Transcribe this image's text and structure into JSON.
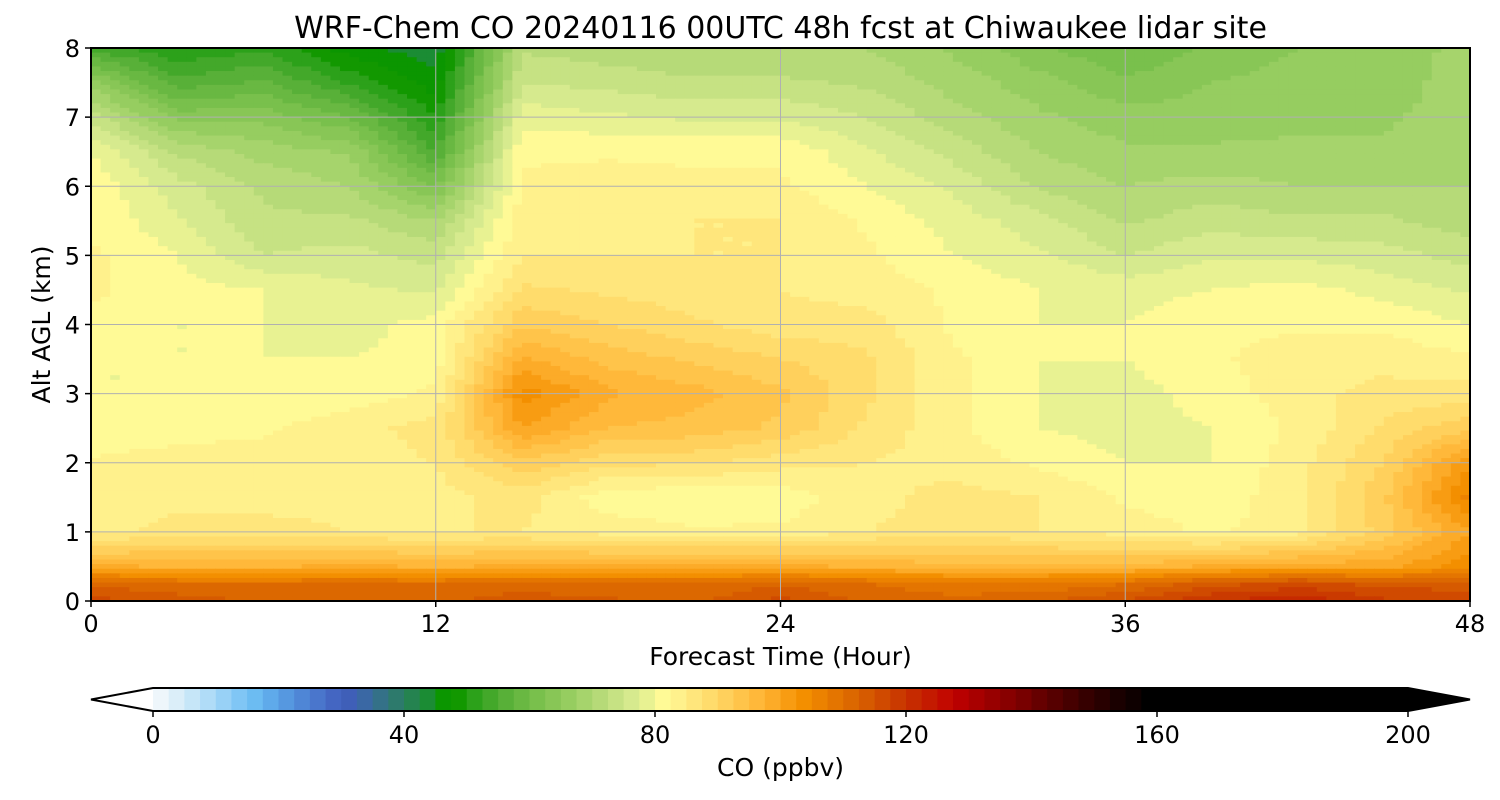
{
  "chart_data": {
    "type": "heatmap",
    "title": "WRF-Chem CO  20240116 00UTC 48h fcst at Chiwaukee lidar site",
    "xlabel": "Forecast Time (Hour)",
    "ylabel": "Alt AGL (km)",
    "xlim": [
      0,
      48
    ],
    "ylim": [
      0,
      8
    ],
    "x_ticks": [
      0,
      12,
      24,
      36,
      48
    ],
    "y_ticks": [
      0,
      1,
      2,
      3,
      4,
      5,
      6,
      7,
      8
    ],
    "grid": true,
    "x": [
      0,
      3,
      6,
      9,
      12,
      15,
      18,
      21,
      24,
      27,
      30,
      33,
      36,
      39,
      42,
      45,
      48
    ],
    "y": [
      0,
      0.25,
      0.5,
      1,
      1.5,
      2,
      2.5,
      3,
      3.5,
      4,
      4.5,
      5,
      5.5,
      6,
      6.5,
      7,
      7.5,
      8
    ],
    "z": [
      [
        116,
        114,
        112,
        112,
        112,
        114,
        113,
        112,
        116,
        112,
        111,
        112,
        115,
        120,
        122,
        118,
        116
      ],
      [
        112,
        110,
        110,
        110,
        110,
        111,
        110,
        110,
        112,
        110,
        108,
        108,
        110,
        114,
        116,
        114,
        114
      ],
      [
        98,
        97,
        97,
        98,
        97,
        98,
        98,
        98,
        98,
        97,
        96,
        96,
        96,
        98,
        99,
        99,
        104
      ],
      [
        84,
        86,
        86,
        85,
        85,
        85,
        84,
        83,
        83,
        85,
        86,
        85,
        84,
        82,
        84,
        91,
        100
      ],
      [
        84,
        84,
        84,
        84,
        84,
        86,
        81,
        80,
        81,
        84,
        86,
        85,
        82,
        81,
        84,
        92,
        106
      ],
      [
        83,
        84,
        84,
        84,
        85,
        92,
        88,
        88,
        86,
        85,
        84,
        82,
        80,
        80,
        84,
        90,
        102
      ],
      [
        80,
        81,
        82,
        84,
        86,
        100,
        95,
        94,
        92,
        87,
        83,
        80,
        79,
        80,
        83,
        88,
        92
      ],
      [
        80,
        80,
        81,
        81,
        83,
        104,
        98,
        96,
        93,
        88,
        83,
        80,
        79,
        81,
        84,
        86,
        86
      ],
      [
        80,
        80,
        80,
        80,
        81,
        98,
        94,
        92,
        90,
        88,
        83,
        80,
        80,
        82,
        84,
        84,
        83
      ],
      [
        82,
        80,
        80,
        79,
        81,
        92,
        90,
        88,
        86,
        86,
        82,
        80,
        80,
        82,
        82,
        82,
        80
      ],
      [
        83,
        81,
        80,
        78,
        77,
        88,
        87,
        86,
        85,
        84,
        82,
        80,
        79,
        80,
        81,
        79,
        77
      ],
      [
        83,
        80,
        75,
        76,
        74,
        85,
        85,
        85,
        85,
        83,
        80,
        78,
        75,
        77,
        77,
        76,
        74
      ],
      [
        82,
        78,
        73,
        73,
        70,
        84,
        84,
        85,
        85,
        82,
        79,
        76,
        72,
        74,
        73,
        73,
        71
      ],
      [
        82,
        76,
        72,
        70,
        62,
        83,
        84,
        83,
        83,
        80,
        77,
        72,
        70,
        71,
        70,
        70,
        70
      ],
      [
        80,
        72,
        69,
        67,
        55,
        82,
        82,
        82,
        82,
        78,
        74,
        70,
        68,
        68,
        68,
        68,
        69
      ],
      [
        74,
        64,
        64,
        60,
        50,
        79,
        78,
        77,
        77,
        75,
        71,
        68,
        66,
        66,
        67,
        67,
        69
      ],
      [
        66,
        56,
        58,
        52,
        46,
        75,
        74,
        73,
        73,
        72,
        69,
        66,
        63,
        65,
        66,
        66,
        69
      ],
      [
        54,
        50,
        52,
        46,
        43,
        72,
        71,
        70,
        70,
        70,
        67,
        63,
        60,
        63,
        65,
        65,
        69
      ]
    ],
    "colorbar": {
      "label": "CO  (ppbv)",
      "min": 0,
      "max": 200,
      "step": 2.5,
      "ticks": [
        0,
        40,
        80,
        120,
        160,
        200
      ],
      "extend": "both",
      "colors": [
        "#ffffff",
        "#eef6fb",
        "#dbeef9",
        "#c6e6f8",
        "#b0dcf7",
        "#98d1f6",
        "#80c6f5",
        "#6cbcf2",
        "#5faaea",
        "#5698e0",
        "#4f86d6",
        "#4a76cc",
        "#4466c2",
        "#3f5fb8",
        "#3a68a4",
        "#347188",
        "#2d7a6c",
        "#258350",
        "#1b8c34",
        "#0b9600",
        "#129800",
        "#2ca11a",
        "#43a82a",
        "#58b038",
        "#69b842",
        "#79c04c",
        "#88c656",
        "#96cd60",
        "#a6d46c",
        "#b6da78",
        "#c6e283",
        "#d6ea8e",
        "#e8f292",
        "#fffa96",
        "#fff18c",
        "#ffe67c",
        "#ffdc6c",
        "#ffd05c",
        "#ffc44a",
        "#ffb83a",
        "#fcab28",
        "#f89c12",
        "#f38f00",
        "#ec8200",
        "#e47500",
        "#dc6800",
        "#d65a00",
        "#d04a00",
        "#ca3a00",
        "#c62a00",
        "#c41a00",
        "#c20a00",
        "#b80000",
        "#a80000",
        "#980000",
        "#880000",
        "#780000",
        "#660000",
        "#560000",
        "#460000",
        "#360000",
        "#280000",
        "#1a0000",
        "#0e0000",
        "#000000"
      ]
    }
  }
}
